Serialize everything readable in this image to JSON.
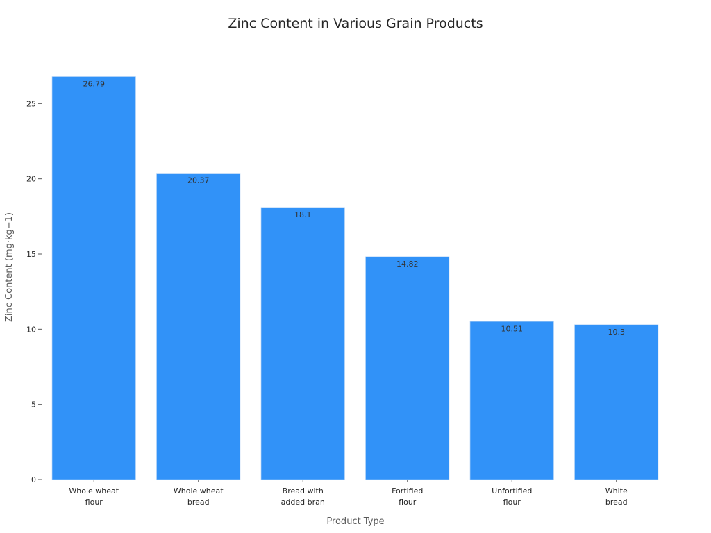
{
  "chart_data": {
    "type": "bar",
    "title": "Zinc Content in Various Grain Products",
    "xlabel": "Product Type",
    "ylabel": "Zinc Content (mg·kg−1)",
    "categories": [
      [
        "Whole wheat",
        "flour"
      ],
      [
        "Whole wheat",
        "bread"
      ],
      [
        "Bread with",
        "added bran"
      ],
      [
        "Fortified",
        "flour"
      ],
      [
        "Unfortified",
        "flour"
      ],
      [
        "White",
        "bread"
      ]
    ],
    "values": [
      26.79,
      20.37,
      18.1,
      14.82,
      10.51,
      10.3
    ],
    "data_labels": [
      "26.79",
      "20.37",
      "18.1",
      "14.82",
      "10.51",
      "10.3"
    ],
    "ylim": [
      0,
      28.2
    ],
    "yticks": [
      0,
      5,
      10,
      15,
      20,
      25
    ],
    "grid": false,
    "bar_color": "#3192f8"
  }
}
